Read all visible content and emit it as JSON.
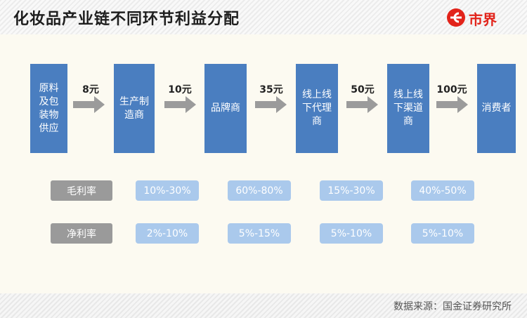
{
  "title": "化妆品产业链不同环节利益分配",
  "logo": {
    "text": "市界",
    "color": "#e2231a"
  },
  "chain": [
    {
      "label": "原料及包装物供应"
    },
    {
      "label": "生产制造商"
    },
    {
      "label": "品牌商"
    },
    {
      "label": "线上线下代理商"
    },
    {
      "label": "线上线下渠道商"
    },
    {
      "label": "消费者"
    }
  ],
  "prices": [
    "8元",
    "10元",
    "35元",
    "50元",
    "100元"
  ],
  "rows": {
    "gross": {
      "label": "毛利率",
      "values": [
        "10%-30%",
        "60%-80%",
        "15%-30%",
        "40%-50%"
      ]
    },
    "net": {
      "label": "净利率",
      "values": [
        "2%-10%",
        "5%-15%",
        "5%-10%",
        "5%-10%"
      ]
    }
  },
  "source": "数据来源：国金证券研究所",
  "colors": {
    "box": "#4a7ec0",
    "pill": "#aac9ec",
    "row_label": "#9a9a9a",
    "arrow": "#9b9b9b"
  }
}
